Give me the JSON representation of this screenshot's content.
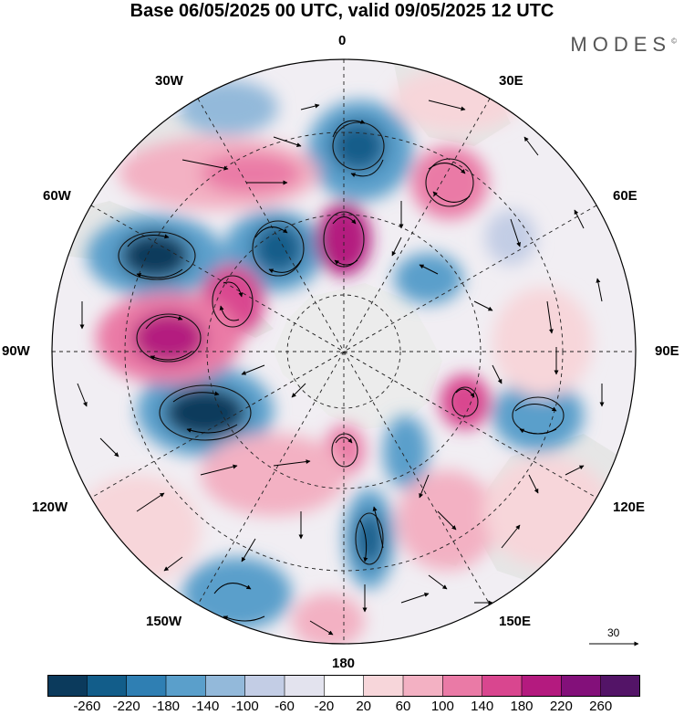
{
  "title": "Base 06/05/2025 00 UTC, valid 09/05/2025 12 UTC",
  "brand": "MODES",
  "brand_mark": "©",
  "longitude_labels": {
    "lon_0": "0",
    "lon_30e": "30E",
    "lon_60e": "60E",
    "lon_90e": "90E",
    "lon_120e": "120E",
    "lon_150e": "150E",
    "lon_180": "180",
    "lon_150w": "150W",
    "lon_120w": "120W",
    "lon_90w": "90W",
    "lon_60w": "60W",
    "lon_30w": "30W"
  },
  "vector_scale_label": "30",
  "colorbar": {
    "ticks": [
      "-260",
      "-220",
      "-180",
      "-140",
      "-100",
      "-60",
      "-20",
      "20",
      "60",
      "100",
      "140",
      "180",
      "220",
      "260"
    ],
    "colors": [
      "#0b3a5c",
      "#125d8a",
      "#2f7fb3",
      "#5a9fcb",
      "#93b9da",
      "#c3cde5",
      "#e3e3ee",
      "#ffffff",
      "#f7d6da",
      "#f3b1c3",
      "#ea7aa6",
      "#d9468f",
      "#b41a7f",
      "#83107a",
      "#531467"
    ]
  },
  "colors": {
    "land": "#e6e6e6",
    "antarctica": "#ececec"
  }
}
